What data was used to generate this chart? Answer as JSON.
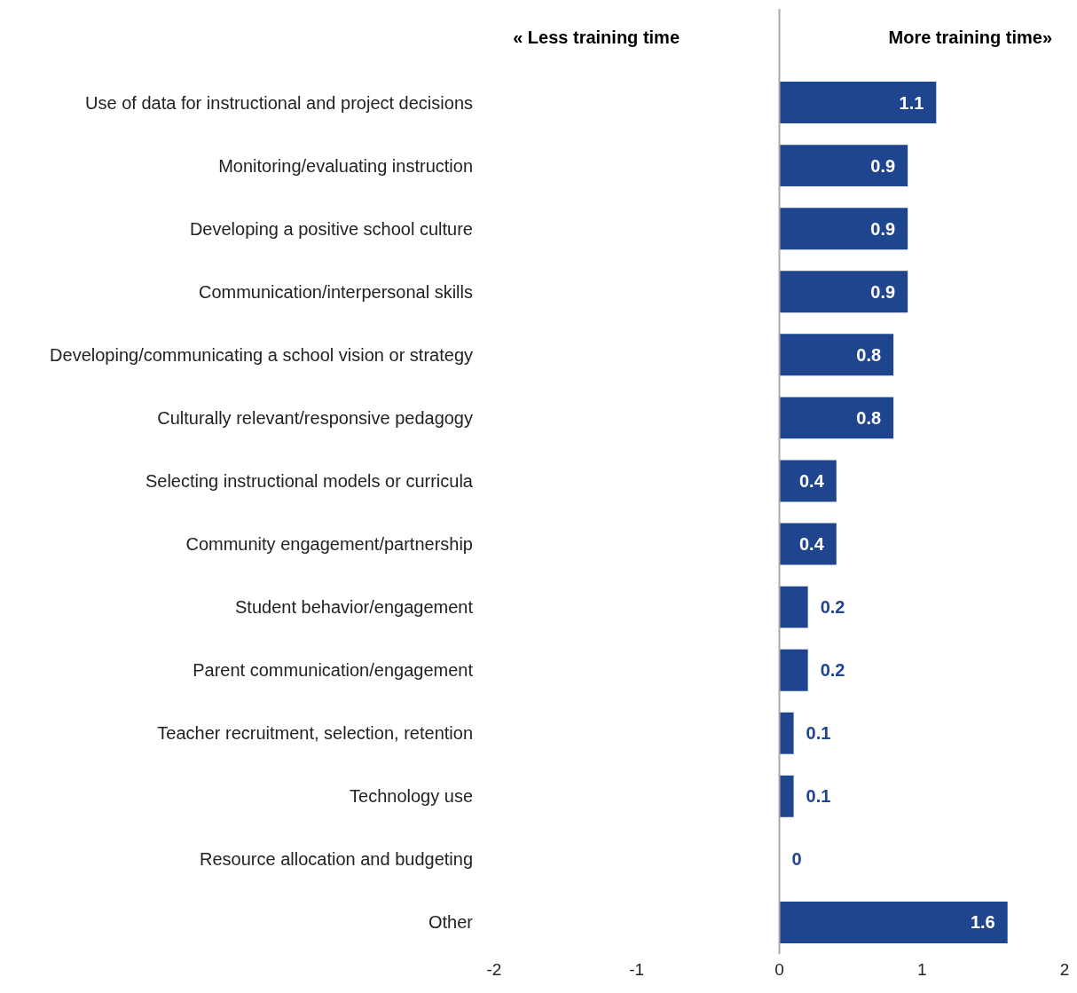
{
  "chart_data": {
    "type": "bar",
    "orientation": "horizontal",
    "categories": [
      "Use of data for instructional and project decisions",
      "Monitoring/evaluating instruction",
      "Developing a positive school culture",
      "Communication/interpersonal skills",
      "Developing/communicating a school vision or strategy",
      "Culturally relevant/responsive pedagogy",
      "Selecting instructional models or curricula",
      "Community engagement/partnership",
      "Student behavior/engagement",
      "Parent communication/engagement",
      "Teacher recruitment, selection, retention",
      "Technology use",
      "Resource allocation and budgeting",
      "Other"
    ],
    "values": [
      1.1,
      0.9,
      0.9,
      0.9,
      0.8,
      0.8,
      0.4,
      0.4,
      0.2,
      0.2,
      0.1,
      0.1,
      0,
      1.6
    ],
    "color": "#1f458f",
    "xlim": [
      -2,
      2
    ],
    "xticks": [
      -2,
      -1,
      0,
      1,
      2
    ],
    "data_labels": true,
    "annotations": [
      "« Less training time",
      "More training time»"
    ]
  }
}
